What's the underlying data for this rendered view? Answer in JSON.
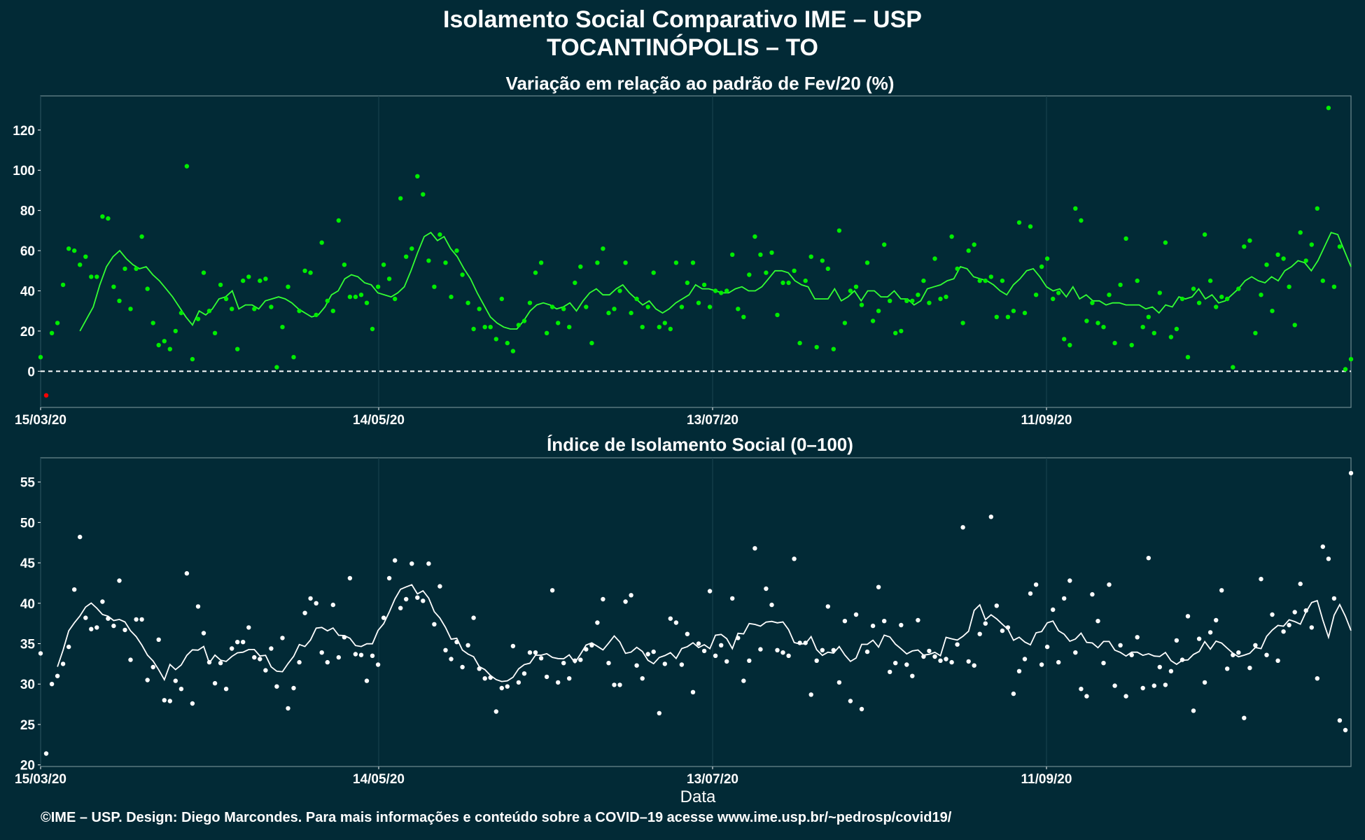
{
  "title": "Isolamento Social Comparativo IME – USP",
  "subtitle": "TOCANTINÓPOLIS – TO",
  "xlabel": "Data",
  "footer": "©IME – USP. Design: Diego Marcondes. Para mais informações e conteúdo sobre a COVID–19 acesse www.ime.usp.br/~pedrosp/covid19/",
  "colors": {
    "background": "#022a36",
    "panel1_points": "#00ee00",
    "panel1_line": "#33ff33",
    "negative_points": "#ff0000",
    "panel2_points": "#ffffff",
    "panel2_line": "#ffffff",
    "baseline": "#ffffff"
  },
  "chart_data": [
    {
      "type": "scatter",
      "title": "Variação em relação ao padrão de Fev/20 (%)",
      "x_tick_labels": [
        "15/03/20",
        "14/05/20",
        "13/07/20",
        "11/09/20"
      ],
      "ylim": [
        -18,
        137
      ],
      "y_ticks": [
        0,
        20,
        40,
        60,
        80,
        100,
        120
      ],
      "reference_line_y": 0,
      "point_values": [
        7,
        -12,
        19,
        24,
        43,
        61,
        60,
        53,
        57,
        47,
        47,
        77,
        76,
        42,
        35,
        51,
        31,
        51,
        67,
        41,
        24,
        13,
        15,
        11,
        20,
        29,
        102,
        6,
        26,
        49,
        30,
        19,
        43,
        36,
        31,
        11,
        45,
        47,
        31,
        45,
        46,
        32,
        2,
        22,
        42,
        7,
        30,
        50,
        49,
        28,
        64,
        35,
        30,
        75,
        53,
        37,
        37,
        38,
        34,
        21,
        42,
        53,
        46,
        36,
        86,
        57,
        61,
        97,
        88,
        55,
        42,
        68,
        54,
        37,
        60,
        48,
        34,
        21,
        31,
        22,
        22,
        16,
        36,
        14,
        10,
        23,
        25,
        34,
        49,
        54,
        19,
        32,
        24,
        31,
        22,
        44,
        52,
        32,
        14,
        54,
        61,
        29,
        31,
        40,
        54,
        29,
        36,
        22,
        32,
        49,
        22,
        24,
        21,
        54,
        32,
        44,
        54,
        34,
        43,
        32,
        40,
        39,
        40,
        58,
        31,
        27,
        48,
        67,
        58,
        49,
        59,
        28,
        44,
        44,
        50,
        14,
        45,
        57,
        12,
        55,
        51,
        11,
        70,
        24,
        40,
        42,
        33,
        54,
        25,
        30,
        63,
        35,
        19,
        20,
        35,
        35,
        38,
        45,
        34,
        56,
        36,
        37,
        67,
        51,
        24,
        60,
        63,
        45,
        45,
        47,
        27,
        45,
        27,
        30,
        74,
        29,
        72,
        38,
        52,
        56,
        36,
        39,
        16,
        13,
        81,
        75,
        25,
        34,
        24,
        22,
        38,
        14,
        43,
        66,
        13,
        45,
        22,
        27,
        19,
        39,
        64,
        17,
        21,
        36,
        7,
        41,
        34,
        68,
        45,
        32,
        37,
        36,
        2,
        41,
        62,
        65,
        19,
        38,
        53,
        30,
        58,
        56,
        42,
        23,
        69,
        55,
        63,
        81,
        45,
        131,
        42,
        62,
        1,
        6
      ],
      "moving_average": [
        20,
        26,
        32,
        43,
        52,
        57,
        60,
        56,
        53,
        51,
        52,
        48,
        45,
        41,
        37,
        32,
        27,
        23,
        30,
        28,
        31,
        36,
        37,
        40,
        31,
        33,
        33,
        31,
        35,
        36,
        37,
        36,
        34,
        31,
        29,
        27,
        28,
        32,
        38,
        40,
        46,
        48,
        47,
        44,
        43,
        39,
        38,
        37,
        39,
        42,
        50,
        59,
        67,
        69,
        65,
        67,
        61,
        57,
        51,
        46,
        39,
        33,
        27,
        24,
        22,
        21,
        21,
        25,
        30,
        33,
        34,
        33,
        31,
        32,
        34,
        30,
        35,
        39,
        41,
        38,
        38,
        41,
        43,
        39,
        36,
        33,
        35,
        31,
        29,
        31,
        34,
        36,
        38,
        43,
        41,
        41,
        40,
        39,
        39,
        41,
        42,
        40,
        40,
        42,
        46,
        50,
        50,
        49,
        45,
        43,
        42,
        36,
        36,
        36,
        41,
        35,
        37,
        40,
        35,
        40,
        40,
        37,
        37,
        40,
        36,
        36,
        33,
        35,
        41,
        42,
        43,
        45,
        46,
        52,
        51,
        47,
        46,
        45,
        43,
        40,
        38,
        43,
        46,
        50,
        51,
        47,
        42,
        40,
        41,
        37,
        42,
        36,
        38,
        35,
        35,
        33,
        34,
        34,
        33,
        33,
        33,
        31,
        32,
        29,
        33,
        32,
        37,
        36,
        37,
        41,
        36,
        38,
        34,
        35,
        38,
        41,
        45,
        47,
        45,
        44,
        47,
        45,
        50,
        52,
        55,
        54,
        50,
        55,
        62,
        69,
        68,
        60,
        52
      ]
    },
    {
      "type": "scatter",
      "title": "Índice de Isolamento Social (0–100)",
      "x_tick_labels": [
        "15/03/20",
        "14/05/20",
        "13/07/20",
        "11/09/20"
      ],
      "ylim": [
        19.8,
        58
      ],
      "y_ticks": [
        20,
        25,
        30,
        35,
        40,
        45,
        50,
        55
      ],
      "point_values": [
        33.8,
        21.4,
        30,
        31,
        32.5,
        34.6,
        41.7,
        48.2,
        38.2,
        36.8,
        37,
        40.2,
        38.1,
        37.2,
        42.8,
        36.7,
        33,
        38,
        38,
        30.5,
        32.1,
        35.5,
        28,
        27.9,
        30.4,
        29.4,
        43.7,
        27.6,
        39.6,
        36.3,
        32.7,
        30.1,
        32.6,
        29.4,
        34.4,
        35.2,
        35.2,
        37,
        33.3,
        33.1,
        31.7,
        34.4,
        29.7,
        35.7,
        27,
        29.5,
        32.7,
        38.8,
        40.6,
        40,
        33.9,
        32.7,
        39.8,
        33.3,
        35.8,
        43.1,
        33.7,
        33.6,
        30.4,
        33.5,
        32.4,
        38.2,
        43.1,
        45.3,
        39.4,
        40.5,
        44.9,
        40.7,
        40.3,
        44.9,
        37.4,
        42.1,
        34.2,
        33.1,
        35.2,
        32.1,
        34.8,
        38.2,
        31.9,
        30.7,
        30.8,
        26.6,
        29.5,
        29.7,
        34.7,
        30.2,
        31.3,
        33.9,
        33.9,
        33.2,
        30.9,
        41.6,
        30.2,
        32.6,
        30.7,
        32.9,
        33,
        34.3,
        34.8,
        37.6,
        40.5,
        32.6,
        29.9,
        29.9,
        40.2,
        41,
        32.3,
        30.7,
        33.7,
        34,
        26.4,
        32.5,
        38.1,
        37.6,
        32.4,
        36.2,
        29,
        35,
        34.1,
        41.5,
        33.5,
        34.8,
        32.8,
        40.6,
        35.7,
        30.4,
        32.9,
        46.8,
        34.3,
        41.8,
        39.8,
        34.2,
        33.9,
        33.5,
        45.5,
        35.1,
        35.1,
        28.7,
        32.9,
        34.2,
        39.6,
        34.2,
        30.2,
        37.8,
        27.9,
        38.6,
        26.9,
        34,
        37.2,
        42,
        37.8,
        31.5,
        32.6,
        37.3,
        32.4,
        31,
        37.9,
        33.4,
        34.1,
        33.4,
        32.9,
        33.1,
        32.7,
        34.9,
        49.4,
        32.8,
        32.3,
        36.2,
        37.5,
        50.7,
        39.7,
        36.6,
        37,
        28.8,
        31.6,
        33.1,
        41.2,
        42.3,
        32.4,
        34.6,
        39.2,
        32.7,
        40.6,
        42.8,
        33.9,
        29.4,
        28.5,
        41.1,
        37.8,
        32.6,
        42.3,
        29.8,
        34.8,
        28.5,
        33.6,
        35.8,
        29.5,
        45.6,
        29.8,
        32.1,
        29.9,
        31.6,
        35.4,
        33,
        38.4,
        26.7,
        35.6,
        30.2,
        36.4,
        37.9,
        41.6,
        31.9,
        33.6,
        33.9,
        25.8,
        32,
        34.8,
        43,
        33.6,
        38.6,
        32.9,
        36.5,
        37.3,
        38.9,
        42.4,
        39.1,
        37,
        30.7,
        47,
        45.5,
        40.6,
        25.5,
        24.3,
        56.1
      ]
    }
  ]
}
